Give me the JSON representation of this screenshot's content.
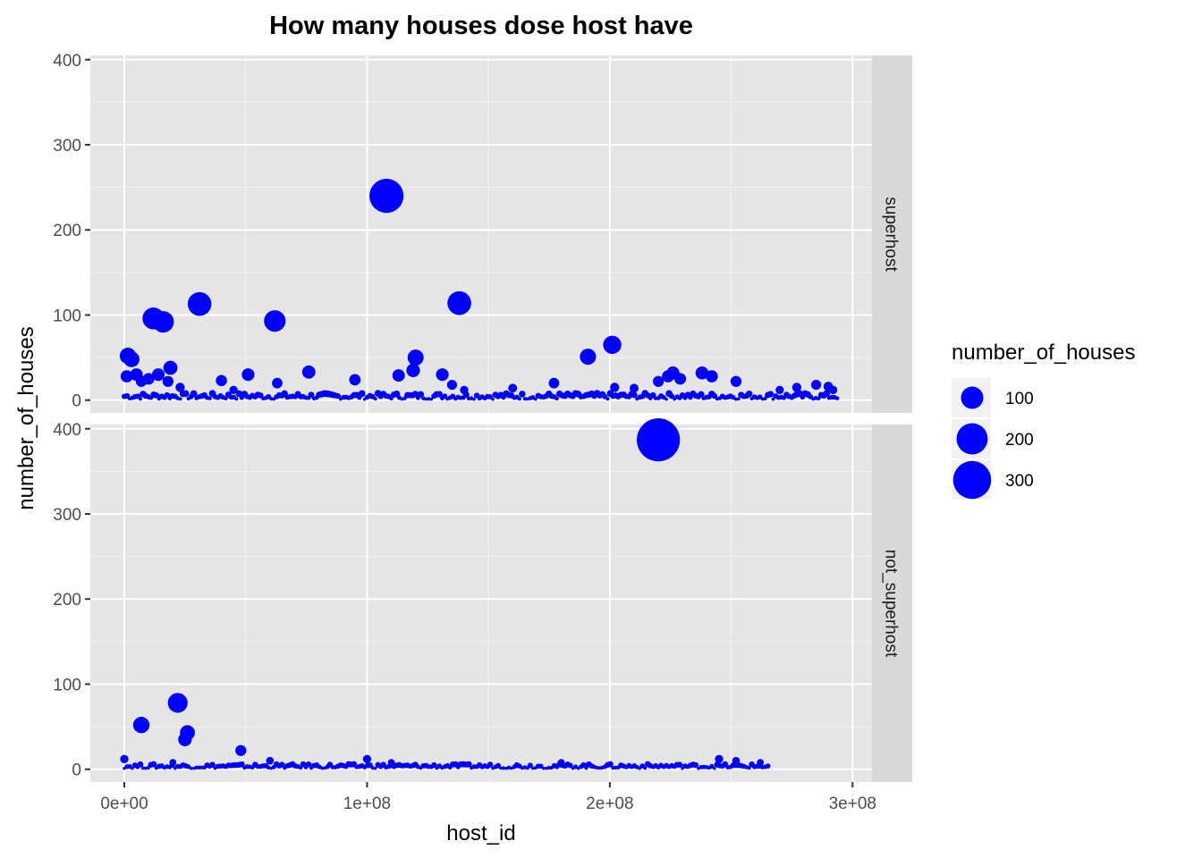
{
  "chart_data": {
    "type": "scatter",
    "title": "How many houses dose host have",
    "xlabel": "host_id",
    "ylabel": "number_of_houses",
    "xlim": [
      -14000000.0,
      308000000.0
    ],
    "ylim": [
      -15,
      405
    ],
    "x_ticks": [
      0,
      100000000,
      200000000,
      300000000
    ],
    "x_tick_labels": [
      "0e+00",
      "1e+08",
      "2e+08",
      "3e+08"
    ],
    "y_ticks": [
      0,
      100,
      200,
      300,
      400
    ],
    "y_tick_labels": [
      "0",
      "100",
      "200",
      "300",
      "400"
    ],
    "point_color": "#0000ff",
    "panel_background": "#e5e5e5",
    "strip_background": "#d9d9d9",
    "grid": true,
    "legend": {
      "title": "number_of_houses",
      "position": "right",
      "entries": [
        {
          "label": "100",
          "value": 100
        },
        {
          "label": "200",
          "value": 200
        },
        {
          "label": "300",
          "value": 300
        }
      ]
    },
    "facets": [
      {
        "label": "superhost",
        "points": [
          [
            1000000,
            28
          ],
          [
            1500000,
            52
          ],
          [
            3000000,
            48
          ],
          [
            5000000,
            30
          ],
          [
            7000000,
            22
          ],
          [
            10000000,
            25
          ],
          [
            12000000,
            96
          ],
          [
            14000000,
            30
          ],
          [
            16000000,
            92
          ],
          [
            18000000,
            22
          ],
          [
            19000000,
            38
          ],
          [
            23000000,
            15
          ],
          [
            31000000,
            113
          ],
          [
            40000000,
            23
          ],
          [
            45000000,
            12
          ],
          [
            51000000,
            30
          ],
          [
            62000000,
            93
          ],
          [
            63000000,
            20
          ],
          [
            76000000,
            33
          ],
          [
            95000000,
            24
          ],
          [
            108000000,
            240
          ],
          [
            113000000,
            29
          ],
          [
            119000000,
            35
          ],
          [
            120000000,
            50
          ],
          [
            131000000,
            30
          ],
          [
            135000000,
            18
          ],
          [
            138000000,
            114
          ],
          [
            140000000,
            12
          ],
          [
            160000000,
            14
          ],
          [
            177000000,
            20
          ],
          [
            191000000,
            51
          ],
          [
            201000000,
            65
          ],
          [
            202000000,
            15
          ],
          [
            210000000,
            14
          ],
          [
            220000000,
            22
          ],
          [
            224000000,
            28
          ],
          [
            226000000,
            32
          ],
          [
            229000000,
            25
          ],
          [
            238000000,
            32
          ],
          [
            242000000,
            28
          ],
          [
            252000000,
            22
          ],
          [
            270000000,
            12
          ],
          [
            277000000,
            15
          ],
          [
            285000000,
            18
          ],
          [
            290000000,
            16
          ],
          [
            292000000,
            12
          ]
        ],
        "baseline": {
          "x_range": [
            0,
            294000000
          ],
          "y_range": [
            1,
            8
          ]
        }
      },
      {
        "label": "not_superhost",
        "points": [
          [
            0,
            12
          ],
          [
            7000000,
            52
          ],
          [
            20000000,
            8
          ],
          [
            22000000,
            78
          ],
          [
            25000000,
            35
          ],
          [
            26000000,
            43
          ],
          [
            48000000,
            22
          ],
          [
            60000000,
            10
          ],
          [
            100000000,
            12
          ],
          [
            110000000,
            8
          ],
          [
            180000000,
            8
          ],
          [
            220000000,
            387
          ],
          [
            245000000,
            12
          ],
          [
            252000000,
            10
          ],
          [
            262000000,
            8
          ]
        ],
        "baseline": {
          "x_range": [
            0,
            266000000
          ],
          "y_range": [
            1,
            6
          ]
        }
      }
    ]
  }
}
